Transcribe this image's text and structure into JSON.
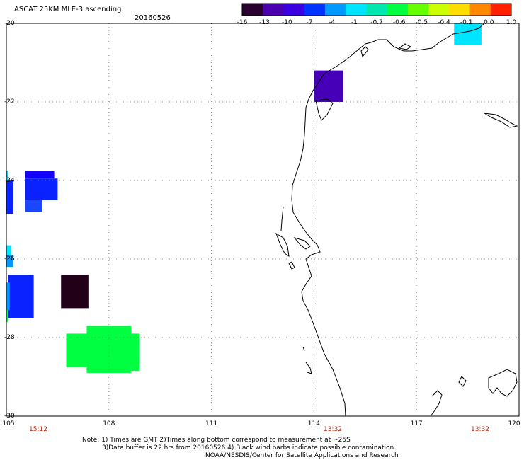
{
  "header": {
    "title": "ASCAT 25KM MLE-3 ascending",
    "date": "20160526"
  },
  "colorbar": {
    "labels": [
      "-16",
      "-13",
      "-10",
      "-7",
      "-4",
      "-1",
      "-0.7",
      "-0.6",
      "-0.5",
      "-0.4",
      "-0.1",
      "0.0",
      "1.0"
    ],
    "colors": [
      "#2a0030",
      "#4b00b0",
      "#3a00e0",
      "#0033ff",
      "#0099ff",
      "#00e5ff",
      "#00e8b0",
      "#00ff40",
      "#66ff00",
      "#ccff00",
      "#ffdd00",
      "#ff8800",
      "#ff2000"
    ]
  },
  "axes": {
    "lat_labels": [
      "-20",
      "-22",
      "-24",
      "-26",
      "-28",
      "-30"
    ],
    "lon_labels": [
      "105",
      "108",
      "111",
      "114",
      "117",
      "120"
    ]
  },
  "pass_times": [
    "15:12",
    "13:32",
    "13:32"
  ],
  "notes": [
    "Note: 1) Times are GMT 2)Times along bottom correspond to measurement at ~25S",
    "3)Data buffer is 22 hrs from 20160526 4) Black wind barbs indicate possible contamination",
    "NOAA/NESDIS/Center for Satellite Applications and Research"
  ],
  "data_cells": [
    {
      "lon": 114.0,
      "lat": -21.2,
      "dlon": 0.85,
      "dlat": 0.8,
      "color": "#4500b8",
      "value": "-13"
    },
    {
      "lon": 118.1,
      "lat": -20.0,
      "dlon": 0.8,
      "dlat": 0.55,
      "color": "#00e5ff",
      "value": "-1"
    },
    {
      "lon": 105.55,
      "lat": -23.75,
      "dlon": 0.85,
      "dlat": 0.2,
      "color": "#1400ff",
      "value": "-10"
    },
    {
      "lon": 105.55,
      "lat": -23.95,
      "dlon": 0.95,
      "dlat": 0.55,
      "color": "#0a22ff",
      "value": "-7"
    },
    {
      "lon": 105.55,
      "lat": -24.5,
      "dlon": 0.5,
      "dlat": 0.3,
      "color": "#1a46ff",
      "value": "-7"
    },
    {
      "lon": 105.0,
      "lat": -24.0,
      "dlon": 0.2,
      "dlat": 0.85,
      "color": "#0a22ff",
      "value": "-7"
    },
    {
      "lon": 105.0,
      "lat": -23.75,
      "dlon": 0.05,
      "dlat": 0.25,
      "color": "#00cfff",
      "value": "-4"
    },
    {
      "lon": 105.0,
      "lat": -25.65,
      "dlon": 0.15,
      "dlat": 0.5,
      "color": "#00e5ff",
      "value": "-1"
    },
    {
      "lon": 105.0,
      "lat": -25.9,
      "dlon": 0.2,
      "dlat": 0.3,
      "color": "#0099ff",
      "value": "-4"
    },
    {
      "lon": 105.05,
      "lat": -26.4,
      "dlon": 0.75,
      "dlat": 1.1,
      "color": "#0a22ff",
      "value": "-7"
    },
    {
      "lon": 105.0,
      "lat": -26.6,
      "dlon": 0.1,
      "dlat": 0.7,
      "color": "#0099ff",
      "value": "-4"
    },
    {
      "lon": 105.0,
      "lat": -27.3,
      "dlon": 0.05,
      "dlat": 0.3,
      "color": "#00ff40",
      "value": "-0.6"
    },
    {
      "lon": 106.6,
      "lat": -26.4,
      "dlon": 0.8,
      "dlat": 0.85,
      "color": "#220018",
      "value": "-16"
    },
    {
      "lon": 106.75,
      "lat": -27.9,
      "dlon": 2.0,
      "dlat": 0.85,
      "color": "#00ff40",
      "value": "-0.6"
    },
    {
      "lon": 107.35,
      "lat": -27.7,
      "dlon": 1.3,
      "dlat": 1.2,
      "color": "#00ff40",
      "value": "-0.6"
    },
    {
      "lon": 108.65,
      "lat": -27.9,
      "dlon": 0.25,
      "dlat": 0.95,
      "color": "#00ff40",
      "value": "-0.6"
    }
  ]
}
